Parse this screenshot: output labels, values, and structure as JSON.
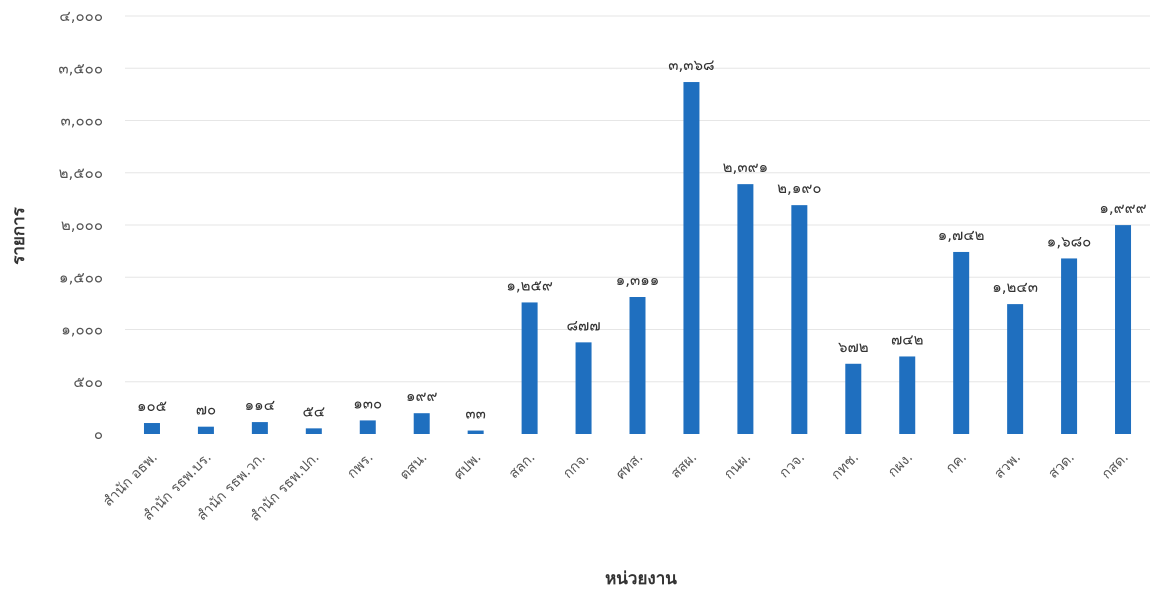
{
  "chart_data": {
    "type": "bar",
    "xlabel": "หน่วยงาน",
    "ylabel": "รายการ",
    "ylim": [
      0,
      4000
    ],
    "yticks": [
      0,
      500,
      1000,
      1500,
      2000,
      2500,
      3000,
      3500,
      4000
    ],
    "ytick_labels": [
      "๐",
      "๕๐๐",
      "๑,๐๐๐",
      "๑,๕๐๐",
      "๒,๐๐๐",
      "๒,๕๐๐",
      "๓,๐๐๐",
      "๓,๕๐๐",
      "๔,๐๐๐"
    ],
    "grid": true,
    "bar_color": "#1f6fbf",
    "categories": [
      "สำนัก อธพ.",
      "สำนัก รธพ.บร.",
      "สำนัก รธพ.วก.",
      "สำนัก รธพ.ปก.",
      "กพร.",
      "ตสน.",
      "ศปพ.",
      "สลก.",
      "กกจ.",
      "ศทส.",
      "สสผ.",
      "กนผ.",
      "กวจ.",
      "กทช.",
      "กผง.",
      "กค.",
      "สวพ.",
      "สวด.",
      "กสด."
    ],
    "values": [
      105,
      70,
      114,
      54,
      130,
      199,
      33,
      1259,
      877,
      1311,
      3368,
      2391,
      2190,
      672,
      742,
      1742,
      1243,
      1680,
      1999
    ],
    "data_labels": [
      "๑๐๕",
      "๗๐",
      "๑๑๔",
      "๕๔",
      "๑๓๐",
      "๑๙๙",
      "๓๓",
      "๑,๒๕๙",
      "๘๗๗",
      "๑,๓๑๑",
      "๓,๓๖๘",
      "๒,๓๙๑",
      "๒,๑๙๐",
      "๖๗๒",
      "๗๔๒",
      "๑,๗๔๒",
      "๑,๒๔๓",
      "๑,๖๘๐",
      "๑,๙๙๙"
    ]
  }
}
